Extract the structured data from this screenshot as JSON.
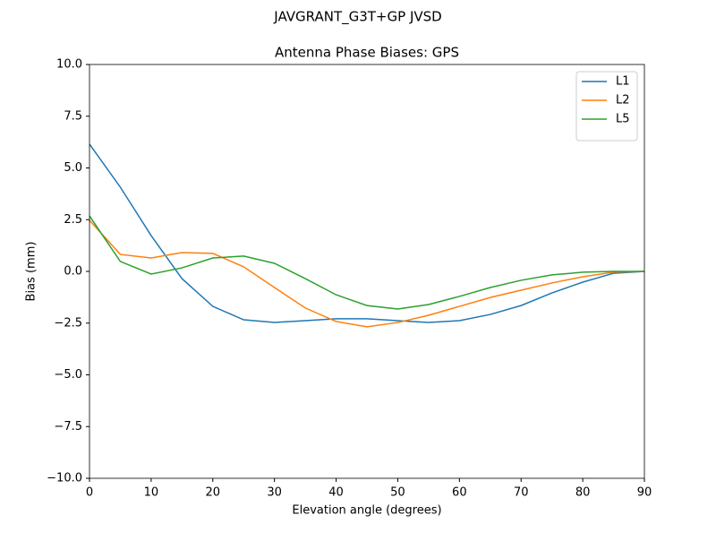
{
  "chart_data": {
    "type": "line",
    "suptitle": "JAVGRANT_G3T+GP JVSD",
    "title": "Antenna Phase Biases: GPS",
    "x_label": "Elevation angle (degrees)",
    "y_label": "Bias (mm)",
    "x": [
      0,
      5,
      10,
      15,
      20,
      25,
      30,
      35,
      40,
      45,
      50,
      55,
      60,
      65,
      70,
      75,
      80,
      85,
      90
    ],
    "series": [
      {
        "name": "L1",
        "color": "#1f77b4",
        "values": [
          6.15,
          4.07,
          1.73,
          -0.35,
          -1.69,
          -2.34,
          -2.47,
          -2.38,
          -2.29,
          -2.29,
          -2.38,
          -2.47,
          -2.38,
          -2.08,
          -1.65,
          -1.04,
          -0.52,
          -0.09,
          0
        ]
      },
      {
        "name": "L2",
        "color": "#ff7f0e",
        "values": [
          2.47,
          0.82,
          0.65,
          0.91,
          0.87,
          0.22,
          -0.78,
          -1.77,
          -2.42,
          -2.68,
          -2.47,
          -2.12,
          -1.69,
          -1.26,
          -0.91,
          -0.56,
          -0.26,
          -0.04,
          0
        ]
      },
      {
        "name": "L5",
        "color": "#2ca02c",
        "values": [
          2.68,
          0.48,
          -0.13,
          0.17,
          0.65,
          0.74,
          0.39,
          -0.35,
          -1.13,
          -1.65,
          -1.82,
          -1.6,
          -1.21,
          -0.78,
          -0.43,
          -0.17,
          -0.04,
          0,
          0
        ]
      }
    ],
    "xlim": [
      0,
      90
    ],
    "xticks": [
      0,
      10,
      20,
      30,
      40,
      50,
      60,
      70,
      80,
      90
    ],
    "ylim": [
      -10,
      10
    ],
    "yticks": [
      {
        "value": -10,
        "label": "−10.0"
      },
      {
        "value": -7.5,
        "label": "−7.5"
      },
      {
        "value": -5,
        "label": "−5.0"
      },
      {
        "value": -2.5,
        "label": "−2.5"
      },
      {
        "value": 0,
        "label": "0.0"
      },
      {
        "value": 2.5,
        "label": "2.5"
      },
      {
        "value": 5,
        "label": "5.0"
      },
      {
        "value": 7.5,
        "label": "7.5"
      },
      {
        "value": 10,
        "label": "10.0"
      }
    ],
    "grid": false,
    "legend": "upper-right"
  }
}
